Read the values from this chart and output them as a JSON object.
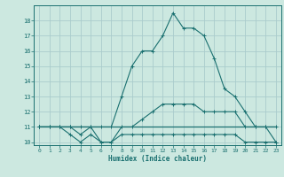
{
  "xlabel": "Humidex (Indice chaleur)",
  "bg_color": "#cce8e0",
  "line_color": "#1a7070",
  "grid_color": "#aacccc",
  "hours": [
    0,
    1,
    2,
    3,
    4,
    5,
    6,
    7,
    8,
    9,
    10,
    11,
    12,
    13,
    14,
    15,
    16,
    17,
    18,
    19,
    20,
    21,
    22,
    23
  ],
  "series1": [
    11,
    11,
    11,
    11,
    10.5,
    11,
    10,
    10,
    11,
    11,
    11.5,
    12,
    12.5,
    12.5,
    12.5,
    12.5,
    12,
    12,
    12,
    12,
    11,
    11,
    11,
    10
  ],
  "series2": [
    11,
    11,
    11,
    10.5,
    10,
    10.5,
    10,
    10,
    10.5,
    10.5,
    10.5,
    10.5,
    10.5,
    10.5,
    10.5,
    10.5,
    10.5,
    10.5,
    10.5,
    10.5,
    10,
    10,
    10,
    10
  ],
  "series3": [
    11,
    11,
    11,
    11,
    11,
    11,
    11,
    11,
    11,
    11,
    11,
    11,
    11,
    11,
    11,
    11,
    11,
    11,
    11,
    11,
    11,
    11,
    11,
    11
  ],
  "series4": [
    11,
    11,
    11,
    11,
    11,
    11,
    11,
    11,
    13,
    15,
    16,
    16,
    17,
    18.5,
    17.5,
    17.5,
    17,
    15.5,
    13.5,
    13,
    12,
    11,
    11,
    11
  ],
  "ylim": [
    9.8,
    19.0
  ],
  "xlim": [
    -0.5,
    23.5
  ],
  "yticks": [
    10,
    11,
    12,
    13,
    14,
    15,
    16,
    17,
    18
  ],
  "xticks": [
    0,
    1,
    2,
    3,
    4,
    5,
    6,
    7,
    8,
    9,
    10,
    11,
    12,
    13,
    14,
    15,
    16,
    17,
    18,
    19,
    20,
    21,
    22,
    23
  ],
  "xtick_labels": [
    "0",
    "1",
    "2",
    "3",
    "4",
    "5",
    "6",
    "7",
    "8",
    "9",
    "10",
    "11",
    "12",
    "13",
    "14",
    "15",
    "16",
    "17",
    "18",
    "19",
    "20",
    "21",
    "22",
    "23"
  ]
}
